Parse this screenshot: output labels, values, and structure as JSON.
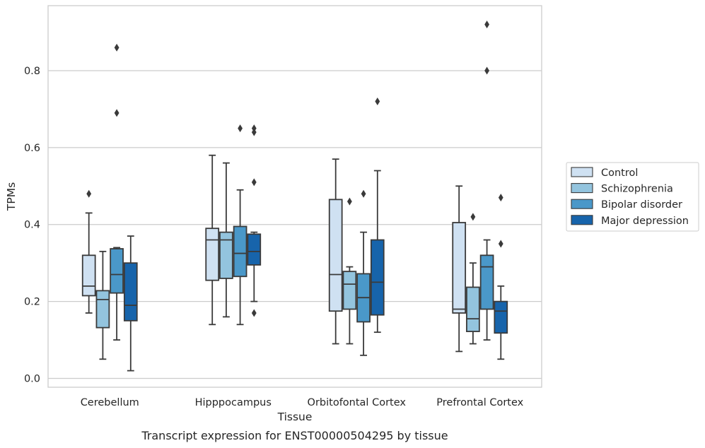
{
  "chart_data": {
    "type": "box",
    "caption": "Transcript expression for ENST00000504295 by tissue",
    "xlabel": "Tissue",
    "ylabel": "TPMs",
    "ylim": [
      -0.02,
      0.97
    ],
    "yticks": [
      0.0,
      0.2,
      0.4,
      0.6,
      0.8
    ],
    "ytick_labels": [
      "0.0",
      "0.2",
      "0.4",
      "0.6",
      "0.8"
    ],
    "grid": "horizontal",
    "legend_position": "right",
    "categories": [
      "Cerebellum",
      "Hipppocampus",
      "Orbitofontal Cortex",
      "Prefrontal Cortex"
    ],
    "series": [
      {
        "name": "Control",
        "color": "#cfe1f2",
        "boxes": [
          {
            "whislo": 0.17,
            "q1": 0.215,
            "med": 0.24,
            "q3": 0.32,
            "whishi": 0.43,
            "fliers": [
              0.48
            ]
          },
          {
            "whislo": 0.14,
            "q1": 0.255,
            "med": 0.36,
            "q3": 0.39,
            "whishi": 0.58,
            "fliers": []
          },
          {
            "whislo": 0.09,
            "q1": 0.175,
            "med": 0.27,
            "q3": 0.465,
            "whishi": 0.57,
            "fliers": []
          },
          {
            "whislo": 0.07,
            "q1": 0.17,
            "med": 0.18,
            "q3": 0.405,
            "whishi": 0.5,
            "fliers": []
          }
        ]
      },
      {
        "name": "Schizophrenia",
        "color": "#93c4de",
        "boxes": [
          {
            "whislo": 0.05,
            "q1": 0.132,
            "med": 0.205,
            "q3": 0.228,
            "whishi": 0.33,
            "fliers": []
          },
          {
            "whislo": 0.16,
            "q1": 0.26,
            "med": 0.36,
            "q3": 0.38,
            "whishi": 0.56,
            "fliers": []
          },
          {
            "whislo": 0.09,
            "q1": 0.18,
            "med": 0.245,
            "q3": 0.278,
            "whishi": 0.29,
            "fliers": [
              0.46
            ]
          },
          {
            "whislo": 0.09,
            "q1": 0.122,
            "med": 0.155,
            "q3": 0.237,
            "whishi": 0.3,
            "fliers": [
              0.42
            ]
          }
        ]
      },
      {
        "name": "Bipolar disorder",
        "color": "#4a98c9",
        "boxes": [
          {
            "whislo": 0.1,
            "q1": 0.222,
            "med": 0.27,
            "q3": 0.337,
            "whishi": 0.34,
            "fliers": [
              0.69,
              0.86
            ]
          },
          {
            "whislo": 0.14,
            "q1": 0.265,
            "med": 0.325,
            "q3": 0.395,
            "whishi": 0.49,
            "fliers": [
              0.65
            ]
          },
          {
            "whislo": 0.06,
            "q1": 0.147,
            "med": 0.21,
            "q3": 0.272,
            "whishi": 0.38,
            "fliers": [
              0.48
            ]
          },
          {
            "whislo": 0.1,
            "q1": 0.18,
            "med": 0.29,
            "q3": 0.32,
            "whishi": 0.36,
            "fliers": [
              0.8,
              0.92
            ]
          }
        ]
      },
      {
        "name": "Major depression",
        "color": "#1764ab",
        "boxes": [
          {
            "whislo": 0.02,
            "q1": 0.15,
            "med": 0.19,
            "q3": 0.3,
            "whishi": 0.37,
            "fliers": []
          },
          {
            "whislo": 0.2,
            "q1": 0.295,
            "med": 0.33,
            "q3": 0.375,
            "whishi": 0.38,
            "fliers": [
              0.17,
              0.51,
              0.64,
              0.65
            ]
          },
          {
            "whislo": 0.12,
            "q1": 0.165,
            "med": 0.25,
            "q3": 0.36,
            "whishi": 0.54,
            "fliers": [
              0.72
            ]
          },
          {
            "whislo": 0.05,
            "q1": 0.118,
            "med": 0.175,
            "q3": 0.2,
            "whishi": 0.24,
            "fliers": [
              0.35,
              0.47
            ]
          }
        ]
      }
    ]
  }
}
